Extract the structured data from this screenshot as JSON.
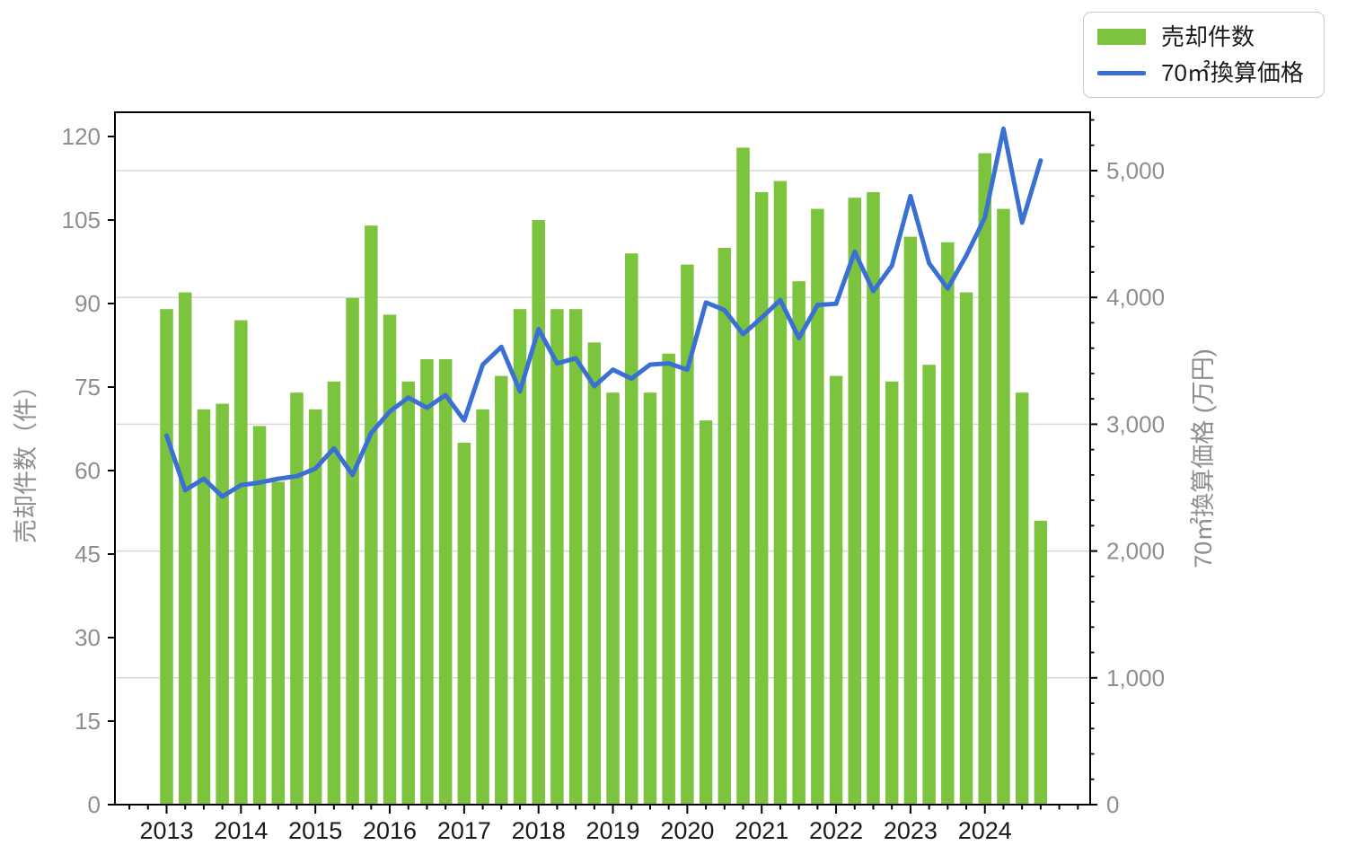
{
  "legend": {
    "items": [
      {
        "label": "売却件数",
        "type": "bar"
      },
      {
        "label": "70㎡換算価格",
        "type": "line"
      }
    ]
  },
  "axes": {
    "left": {
      "title": "売却件数（件）",
      "ticks": [
        0,
        15,
        30,
        45,
        60,
        75,
        90,
        105,
        120
      ]
    },
    "right": {
      "title": "70㎡換算価格 (万円)",
      "major_ticks": [
        {
          "v": 0,
          "label": "0"
        },
        {
          "v": 1000,
          "label": "1,000"
        },
        {
          "v": 2000,
          "label": "2,000"
        },
        {
          "v": 3000,
          "label": "3,000"
        },
        {
          "v": 4000,
          "label": "4,000"
        },
        {
          "v": 5000,
          "label": "5,000"
        }
      ],
      "minor_step": 200
    },
    "x": {
      "year_labels": [
        "2013",
        "2014",
        "2015",
        "2016",
        "2017",
        "2018",
        "2019",
        "2020",
        "2021",
        "2022",
        "2023",
        "2024"
      ]
    }
  },
  "colors": {
    "bar": "#7cc43d",
    "line": "#3a6fd3",
    "grid": "#d9d9d9",
    "axis": "#000000",
    "y_tick_label": "#8e8e8e",
    "x_tick_label": "#1a1a1a",
    "axis_title": "#8e8e8e",
    "legend_border": "#c9c9c9"
  },
  "chart_data": {
    "type": "combo-bar-line",
    "x_quarters": [
      "2013Q1",
      "2013Q2",
      "2013Q3",
      "2013Q4",
      "2014Q1",
      "2014Q2",
      "2014Q3",
      "2014Q4",
      "2015Q1",
      "2015Q2",
      "2015Q3",
      "2015Q4",
      "2016Q1",
      "2016Q2",
      "2016Q3",
      "2016Q4",
      "2017Q1",
      "2017Q2",
      "2017Q3",
      "2017Q4",
      "2018Q1",
      "2018Q2",
      "2018Q3",
      "2018Q4",
      "2019Q1",
      "2019Q2",
      "2019Q3",
      "2019Q4",
      "2020Q1",
      "2020Q2",
      "2020Q3",
      "2020Q4",
      "2021Q1",
      "2021Q2",
      "2021Q3",
      "2021Q4",
      "2022Q1",
      "2022Q2",
      "2022Q3",
      "2022Q4",
      "2023Q1",
      "2023Q2",
      "2023Q3",
      "2023Q4",
      "2024Q1",
      "2024Q2",
      "2024Q3",
      "2024Q4"
    ],
    "series": [
      {
        "name": "売却件数",
        "type": "bar",
        "y_axis": "left",
        "unit": "件",
        "values": [
          89,
          92,
          71,
          72,
          87,
          68,
          58,
          74,
          71,
          76,
          91,
          104,
          88,
          76,
          80,
          80,
          65,
          71,
          77,
          89,
          105,
          89,
          89,
          83,
          74,
          99,
          74,
          81,
          97,
          69,
          100,
          118,
          110,
          112,
          94,
          107,
          77,
          109,
          110,
          76,
          102,
          79,
          101,
          92,
          117,
          107,
          74,
          51
        ]
      },
      {
        "name": "70㎡換算価格",
        "type": "line",
        "y_axis": "right",
        "unit": "万円",
        "values": [
          2910,
          2480,
          2570,
          2430,
          2520,
          2540,
          2570,
          2590,
          2650,
          2810,
          2600,
          2930,
          3100,
          3210,
          3130,
          3230,
          3030,
          3470,
          3610,
          3260,
          3750,
          3480,
          3520,
          3300,
          3430,
          3360,
          3470,
          3480,
          3430,
          3960,
          3900,
          3710,
          3840,
          3980,
          3680,
          3940,
          3950,
          4360,
          4050,
          4250,
          4800,
          4270,
          4070,
          4330,
          4630,
          5330,
          4590,
          5080
        ]
      }
    ],
    "ylim_left": [
      0,
      124.4
    ],
    "ylim_right": [
      0,
      5460
    ],
    "grid": "horizontal gridlines at right-axis majors 1,000–5,000",
    "legend_position": "top-right"
  }
}
